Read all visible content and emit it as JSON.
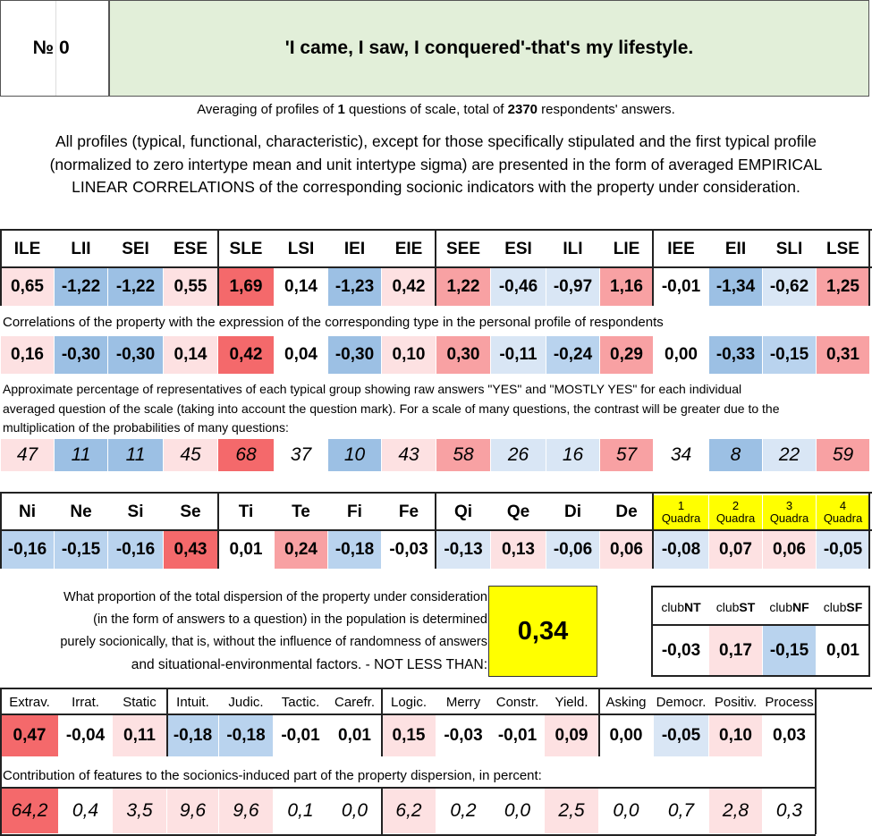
{
  "header": {
    "no_label": "№",
    "no_value": "0",
    "title": "'I came, I saw, I conquered'-that's my lifestyle."
  },
  "averaging": {
    "p1": "Averaging of profiles of ",
    "questions": "1",
    "p2": " questions of scale, total of ",
    "respondents": "2370",
    "p3": " respondents' answers."
  },
  "description": [
    "All profiles (typical, functional, characteristic), except for those specifically stipulated and the first typical profile",
    "(normalized to zero intertype mean and unit intertype sigma) are presented in the form of averaged EMPIRICAL",
    "LINEAR CORRELATIONS of the corresponding socionic indicators with the property under consideration."
  ],
  "types": [
    "ILE",
    "LII",
    "SEI",
    "ESE",
    "SLE",
    "LSI",
    "IEI",
    "EIE",
    "SEE",
    "ESI",
    "ILI",
    "LIE",
    "IEE",
    "EII",
    "SLI",
    "LSE"
  ],
  "type_profile": [
    "0,65",
    "-1,22",
    "-1,22",
    "0,55",
    "1,69",
    "0,14",
    "-1,23",
    "0,42",
    "1,22",
    "-0,46",
    "-0,97",
    "1,16",
    "-0,01",
    "-1,34",
    "-0,62",
    "1,25"
  ],
  "corr_caption": "Correlations of the property with the expression of the corresponding type in the personal profile of respondents",
  "type_corr": [
    "0,16",
    "-0,30",
    "-0,30",
    "0,14",
    "0,42",
    "0,04",
    "-0,30",
    "0,10",
    "0,30",
    "-0,11",
    "-0,24",
    "0,29",
    "0,00",
    "-0,33",
    "-0,15",
    "0,31"
  ],
  "pct_caption": [
    "Approximate percentage of representatives of each typical group showing raw answers \"YES\" and \"MOSTLY YES\" for each individual",
    "averaged question of the scale (taking into account the question mark). For a scale of many questions, the contrast will be greater due to the",
    "multiplication of the probabilities of many questions:"
  ],
  "type_pct": [
    "47",
    "11",
    "11",
    "45",
    "68",
    "37",
    "10",
    "43",
    "58",
    "26",
    "16",
    "57",
    "34",
    "8",
    "22",
    "59"
  ],
  "functions": [
    "Ni",
    "Ne",
    "Si",
    "Se",
    "Ti",
    "Te",
    "Fi",
    "Fe",
    "Qi",
    "Qe",
    "Di",
    "De"
  ],
  "function_vals": [
    "-0,16",
    "-0,15",
    "-0,16",
    "0,43",
    "0,01",
    "0,24",
    "-0,18",
    "-0,03",
    "-0,13",
    "0,13",
    "-0,06",
    "0,06"
  ],
  "quadras": [
    {
      "num": "1",
      "label": "Quadra"
    },
    {
      "num": "2",
      "label": "Quadra"
    },
    {
      "num": "3",
      "label": "Quadra"
    },
    {
      "num": "4",
      "label": "Quadra"
    }
  ],
  "quadra_vals": [
    "-0,08",
    "0,07",
    "0,06",
    "-0,05"
  ],
  "dispersion_note": [
    "What proportion of the total dispersion of the property under consideration",
    "(in the form of answers to a question) in the population is determined",
    "purely socionically, that is, without the influence of randomness of answers",
    "and situational-environmental factors. - NOT LESS THAN:"
  ],
  "dispersion_value": "0,34",
  "clubs": [
    {
      "pre": "club",
      "b": "NT"
    },
    {
      "pre": "club",
      "b": "ST"
    },
    {
      "pre": "club",
      "b": "NF"
    },
    {
      "pre": "club",
      "b": "SF"
    }
  ],
  "club_vals": [
    "-0,03",
    "0,17",
    "-0,15",
    "0,01"
  ],
  "traits": [
    "Extrav.",
    "Irrat.",
    "Static",
    "Intuit.",
    "Judic.",
    "Tactic.",
    "Carefr.",
    "Logic.",
    "Merry",
    "Constr.",
    "Yield.",
    "Asking",
    "Democr.",
    "Positiv.",
    "Process"
  ],
  "trait_vals": [
    "0,47",
    "-0,04",
    "0,11",
    "-0,18",
    "-0,18",
    "-0,01",
    "0,01",
    "0,15",
    "-0,03",
    "-0,01",
    "0,09",
    "0,00",
    "-0,05",
    "0,10",
    "0,03"
  ],
  "contrib_caption": "Contribution of features to the socionics-induced part of the property dispersion, in percent:",
  "trait_contrib": [
    "64,2",
    "0,4",
    "3,5",
    "9,6",
    "9,6",
    "0,1",
    "0,0",
    "6,2",
    "0,2",
    "0,0",
    "2,5",
    "0,0",
    "0,7",
    "2,8",
    "0,3"
  ],
  "colors": {
    "strong_red": "#f4696b",
    "red": "#f8a1a3",
    "light_red": "#fde1e2",
    "strong_blue": "#9cc0e4",
    "blue": "#b9d3ee",
    "light_blue": "#d9e6f5",
    "green": "#e2efd9",
    "yellow": "#ffff00"
  }
}
